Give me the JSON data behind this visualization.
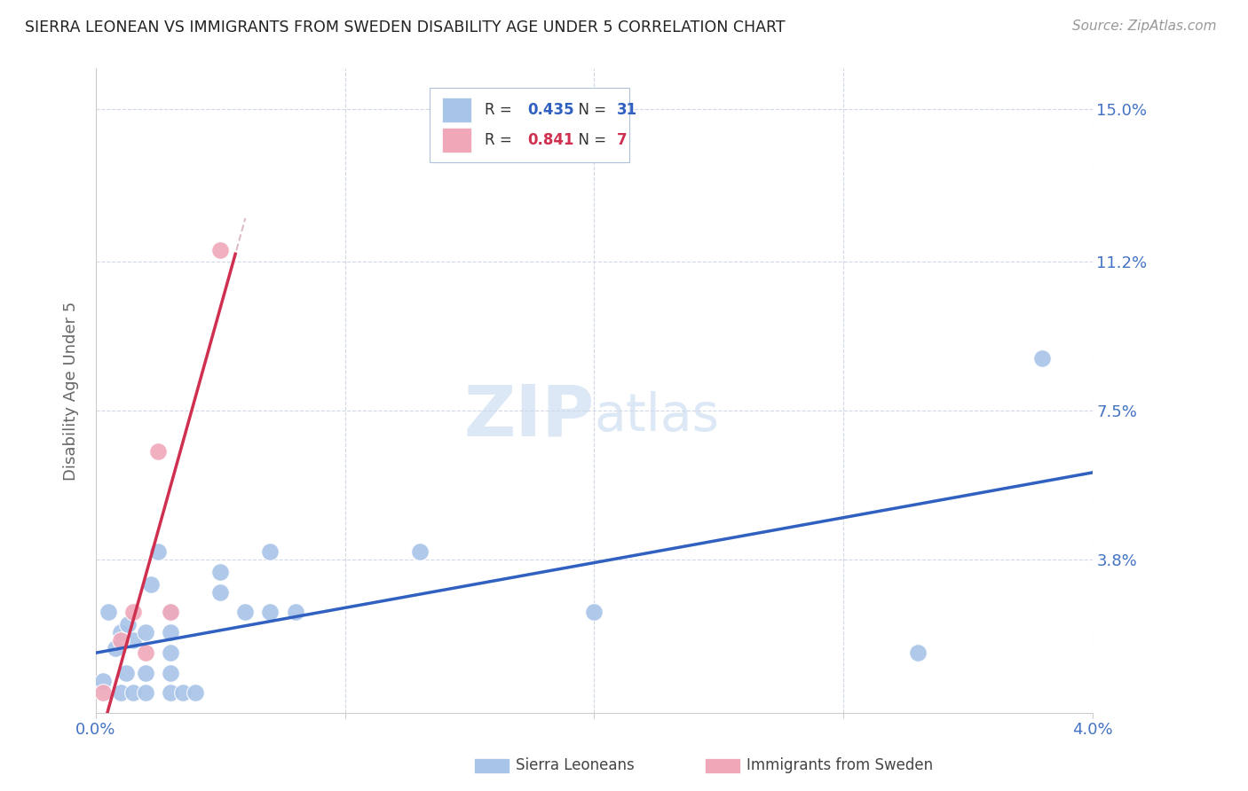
{
  "title": "SIERRA LEONEAN VS IMMIGRANTS FROM SWEDEN DISABILITY AGE UNDER 5 CORRELATION CHART",
  "source": "Source: ZipAtlas.com",
  "ylabel": "Disability Age Under 5",
  "ytick_values": [
    0.15,
    0.112,
    0.075,
    0.038
  ],
  "xmin": 0.0,
  "xmax": 0.04,
  "ymin": 0.0,
  "ymax": 0.16,
  "blue_color": "#a8c4e8",
  "pink_color": "#f0a8b8",
  "trendline_blue": "#3060c0",
  "trendline_pink": "#d03050",
  "trendline_dashed_color": "#d0a0b0",
  "watermark_color": "#dce8f5",
  "sierra_x": [
    0.0003,
    0.0005,
    0.0008,
    0.001,
    0.001,
    0.0012,
    0.0013,
    0.0015,
    0.0015,
    0.002,
    0.002,
    0.002,
    0.0022,
    0.0025,
    0.003,
    0.003,
    0.003,
    0.003,
    0.003,
    0.0035,
    0.004,
    0.005,
    0.005,
    0.006,
    0.007,
    0.007,
    0.008,
    0.013,
    0.02,
    0.033,
    0.038
  ],
  "sierra_y": [
    0.008,
    0.025,
    0.016,
    0.005,
    0.02,
    0.01,
    0.022,
    0.005,
    0.018,
    0.005,
    0.01,
    0.02,
    0.032,
    0.04,
    0.005,
    0.01,
    0.015,
    0.02,
    0.025,
    0.005,
    0.005,
    0.03,
    0.035,
    0.025,
    0.025,
    0.04,
    0.025,
    0.04,
    0.025,
    0.015,
    0.088
  ],
  "sweden_x": [
    0.0003,
    0.001,
    0.0015,
    0.002,
    0.0025,
    0.003,
    0.005
  ],
  "sweden_y": [
    0.005,
    0.018,
    0.025,
    0.015,
    0.065,
    0.025,
    0.115
  ]
}
